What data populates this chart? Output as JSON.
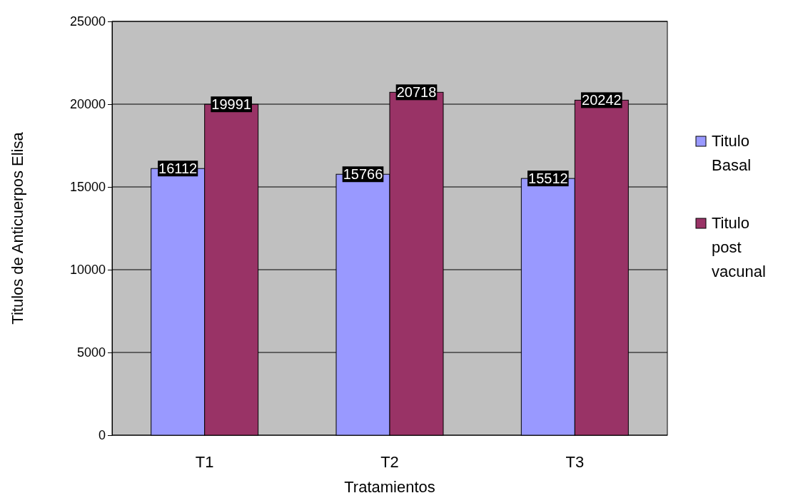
{
  "chart_data": {
    "type": "bar",
    "xlabel": "Tratamientos",
    "ylabel": "Titulos de Anticuerpos Elisa",
    "categories": [
      "T1",
      "T2",
      "T3"
    ],
    "series": [
      {
        "name": "Titulo Basal",
        "color": "#9999ff",
        "values": [
          16112,
          15766,
          15512
        ]
      },
      {
        "name": "Titulo post vacunal",
        "color": "#993366",
        "values": [
          19991,
          20718,
          20242
        ]
      }
    ],
    "ylim": [
      0,
      25000
    ],
    "yticks": [
      0,
      5000,
      10000,
      15000,
      20000,
      25000
    ],
    "grid": "y",
    "legend": "right",
    "data_labels": true
  }
}
